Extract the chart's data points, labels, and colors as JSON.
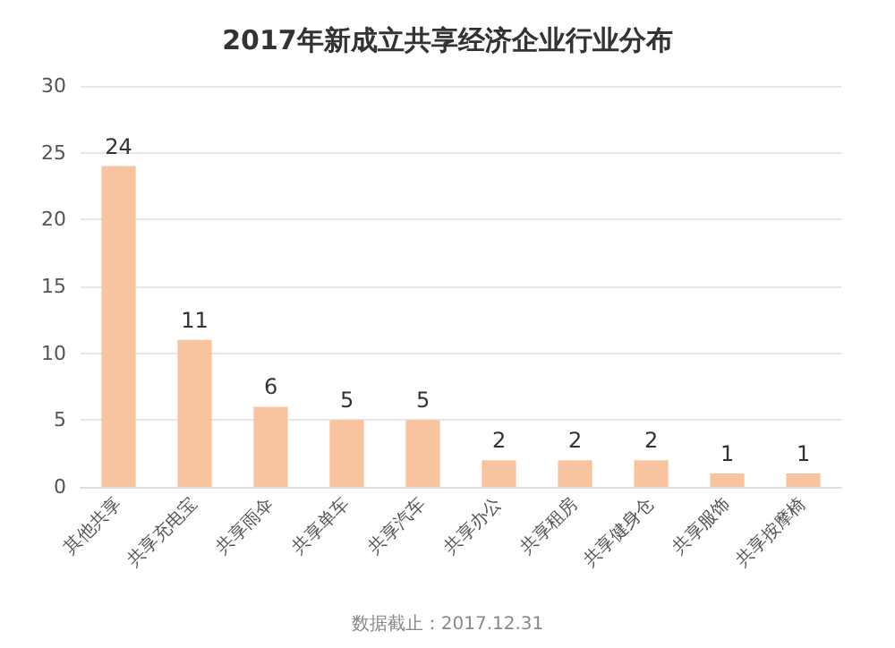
{
  "chart_data": {
    "type": "bar",
    "title": "2017年新成立共享经济企业行业分布",
    "categories": [
      "其他共享",
      "共享充电宝",
      "共享雨伞",
      "共享单车",
      "共享汽车",
      "共享办公",
      "共享租房",
      "共享健身仓",
      "共享服饰",
      "共享按摩椅"
    ],
    "values": [
      24,
      11,
      6,
      5,
      5,
      2,
      2,
      2,
      1,
      1
    ],
    "color": "#f8c4a0",
    "ylim": [
      0,
      30
    ],
    "yticks": [
      0,
      5,
      10,
      15,
      20,
      25,
      30
    ],
    "grid": "y",
    "data_labels": true,
    "annotations": [
      "数据截止：2017.12.31"
    ]
  }
}
